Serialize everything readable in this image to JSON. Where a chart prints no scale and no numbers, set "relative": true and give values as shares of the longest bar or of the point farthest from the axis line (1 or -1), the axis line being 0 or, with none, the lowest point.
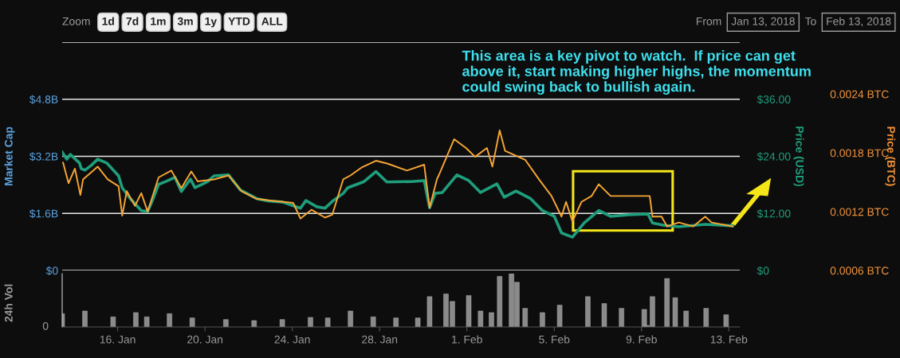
{
  "chart_data": [
    {
      "type": "other",
      "annotations": [
        "Zoom",
        "1d",
        "7d",
        "1m",
        "3m",
        "1y",
        "YTD",
        "ALL",
        "From",
        "Jan 13, 2018",
        "To",
        "Feb 13, 2018"
      ]
    },
    {
      "type": "line",
      "ylabel": "Market Cap",
      "y2label": "Price (USD)",
      "y3label": "Price (BTC)",
      "xlim": [
        "2018-01-13T11:00",
        "2018-02-13T12:00"
      ],
      "ylim": [
        0,
        6.4
      ],
      "yticks": [
        {
          "value": 0,
          "label": "$0"
        },
        {
          "value": 1.6,
          "label": "$1.6B"
        },
        {
          "value": 3.2,
          "label": "$3.2B"
        },
        {
          "value": 4.8,
          "label": "$4.8B"
        },
        {
          "value": 6.4,
          "label": null
        }
      ],
      "y2lim": [
        0,
        48
      ],
      "y2ticks": [
        {
          "value": 0,
          "label": "$0"
        },
        {
          "value": 12,
          "label": "$12.00"
        },
        {
          "value": 24,
          "label": "$24.00"
        },
        {
          "value": 36,
          "label": "$36.00"
        }
      ],
      "y3lim": [
        0.0006,
        0.00293
      ],
      "y3ticks": [
        {
          "value": 0.0006,
          "label": "0.0006 BTC"
        },
        {
          "value": 0.0012,
          "label": "0.0012 BTC"
        },
        {
          "value": 0.0018,
          "label": "0.0018 BTC"
        },
        {
          "value": 0.0024,
          "label": "0.0024 BTC"
        }
      ],
      "grid": "y",
      "tick_labels": "y",
      "marker": "none",
      "line_style": "solid",
      "legend": false,
      "annotations": [
        "This area is a key pivot to watch.  If price can get above it, start making higher highs, the momentum could swing back to bullish again."
      ],
      "series": [
        {
          "axis": "y2",
          "color": "#1f9e7c",
          "x": [
            "2018-01-13T11:00",
            "2018-01-13T16:00",
            "2018-01-13T20:00",
            "2018-01-14T06:00",
            "2018-01-14T08:00",
            "2018-01-14T12:00",
            "2018-01-14T19:00",
            "2018-01-15T02:00",
            "2018-01-15T12:00",
            "2018-01-16T01:00",
            "2018-01-16T05:00",
            "2018-01-16T14:00",
            "2018-01-17T02:00",
            "2018-01-17T09:00",
            "2018-01-17T15:00",
            "2018-01-17T21:00",
            "2018-01-18T05:00",
            "2018-01-18T15:00",
            "2018-01-18T22:00",
            "2018-01-19T08:00",
            "2018-01-19T13:00",
            "2018-01-20T03:00",
            "2018-01-20T10:00",
            "2018-01-21T02:00",
            "2018-01-21T15:00",
            "2018-01-22T09:00",
            "2018-01-22T22:00",
            "2018-01-23T13:00",
            "2018-01-24T09:00",
            "2018-01-24T15:00",
            "2018-01-25T03:00",
            "2018-01-25T12:00",
            "2018-01-25T21:00",
            "2018-01-26T08:00",
            "2018-01-26T13:00",
            "2018-01-27T07:00",
            "2018-01-27T20:00",
            "2018-01-28T08:00",
            "2018-01-29T11:00",
            "2018-01-30T01:00",
            "2018-01-30T07:00",
            "2018-01-30T13:00",
            "2018-01-30T21:00",
            "2018-01-31T13:00",
            "2018-02-01T02:00",
            "2018-02-01T15:00",
            "2018-02-02T09:00",
            "2018-02-02T17:00",
            "2018-02-03T06:00",
            "2018-02-03T22:00",
            "2018-02-04T11:00",
            "2018-02-05T00:00",
            "2018-02-05T08:00",
            "2018-02-05T20:00",
            "2018-02-06T09:00",
            "2018-02-07T01:00",
            "2018-02-07T14:00",
            "2018-02-08T10:00",
            "2018-02-09T07:00",
            "2018-02-09T12:00",
            "2018-02-10T01:00",
            "2018-02-10T17:00",
            "2018-02-11T22:00",
            "2018-02-13T04:00"
          ],
          "values": [
            24.9,
            23.4,
            24.4,
            22.6,
            21.4,
            21.1,
            22.1,
            23.4,
            22.6,
            19.9,
            17.4,
            15.1,
            12.6,
            12.4,
            15.1,
            18.1,
            18.7,
            19.6,
            16.6,
            19.2,
            17.4,
            18.7,
            19.9,
            20.1,
            16.9,
            15.1,
            14.6,
            14.4,
            13.1,
            14.7,
            13.4,
            13.1,
            14.7,
            16.2,
            17.4,
            18.7,
            20.8,
            18.6,
            18.7,
            18.9,
            13.2,
            16.2,
            16.4,
            20.1,
            18.9,
            16.4,
            18.2,
            15.4,
            16.7,
            15.1,
            12.6,
            11.4,
            7.9,
            7.0,
            10.0,
            12.6,
            11.4,
            11.7,
            11.9,
            10.0,
            9.5,
            9.2,
            9.7,
            9.4
          ]
        },
        {
          "axis": "y3",
          "color": "#f7a535",
          "x": [
            "2018-01-13T12:00",
            "2018-01-13T18:00",
            "2018-01-14T01:00",
            "2018-01-14T07:00",
            "2018-01-14T10:00",
            "2018-01-15T02:00",
            "2018-01-15T13:00",
            "2018-01-16T01:00",
            "2018-01-16T05:00",
            "2018-01-16T10:00",
            "2018-01-16T19:00",
            "2018-01-17T02:00",
            "2018-01-17T09:00",
            "2018-01-17T21:00",
            "2018-01-18T11:00",
            "2018-01-18T22:00",
            "2018-01-19T09:00",
            "2018-01-19T16:00",
            "2018-01-20T10:00",
            "2018-01-21T02:00",
            "2018-01-21T16:00",
            "2018-01-22T09:00",
            "2018-01-23T03:00",
            "2018-01-24T01:00",
            "2018-01-24T09:00",
            "2018-01-24T21:00",
            "2018-01-25T12:00",
            "2018-01-25T20:00",
            "2018-01-26T08:00",
            "2018-01-26T16:00",
            "2018-01-27T04:00",
            "2018-01-27T20:00",
            "2018-01-28T09:00",
            "2018-01-29T06:00",
            "2018-01-30T01:00",
            "2018-01-30T07:00",
            "2018-01-30T15:00",
            "2018-01-30T17:00",
            "2018-01-31T10:00",
            "2018-01-31T23:00",
            "2018-02-01T09:00",
            "2018-02-01T22:00",
            "2018-02-02T04:00",
            "2018-02-02T12:00",
            "2018-02-02T18:00",
            "2018-02-03T16:00",
            "2018-02-04T08:00",
            "2018-02-04T21:00",
            "2018-02-05T08:00",
            "2018-02-05T13:00",
            "2018-02-05T20:00",
            "2018-02-06T06:00",
            "2018-02-06T17:00",
            "2018-02-07T01:00",
            "2018-02-07T14:00",
            "2018-02-08T16:00",
            "2018-02-09T09:00",
            "2018-02-09T12:00",
            "2018-02-09T22:00",
            "2018-02-10T04:00",
            "2018-02-10T17:00",
            "2018-02-11T09:00",
            "2018-02-11T22:00",
            "2018-02-12T05:00",
            "2018-02-13T04:00"
          ],
          "values": [
            0.0017,
            0.00149,
            0.00164,
            0.00137,
            0.00153,
            0.00166,
            0.00153,
            0.00146,
            0.00116,
            0.00141,
            0.00126,
            0.00139,
            0.0012,
            0.00155,
            0.00162,
            0.00144,
            0.00161,
            0.00151,
            0.00153,
            0.00157,
            0.00141,
            0.00133,
            0.00131,
            0.00129,
            0.00113,
            0.00122,
            0.00114,
            0.00117,
            0.00153,
            0.00157,
            0.00165,
            0.00172,
            0.00169,
            0.00162,
            0.00168,
            0.00124,
            0.00153,
            0.00157,
            0.00194,
            0.00185,
            0.00176,
            0.00185,
            0.00166,
            0.00203,
            0.00182,
            0.00173,
            0.00152,
            0.00136,
            0.00115,
            0.0013,
            0.0011,
            0.0013,
            0.00136,
            0.00148,
            0.00136,
            0.00136,
            0.00136,
            0.00115,
            0.00115,
            0.00105,
            0.00109,
            0.00105,
            0.00115,
            0.00109,
            0.00105
          ]
        }
      ]
    },
    {
      "type": "bar",
      "relative": true,
      "ylabel": "24h Vol",
      "annotations": [
        "0"
      ],
      "tick_labels": "x",
      "grid": false,
      "xlim": [
        "2018-01-13T11:00",
        "2018-02-13T12:00"
      ],
      "xticks": [
        {
          "value": "2018-01-16",
          "label": "16. Jan"
        },
        {
          "value": "2018-01-20",
          "label": "20. Jan"
        },
        {
          "value": "2018-01-24",
          "label": "24. Jan"
        },
        {
          "value": "2018-01-28",
          "label": "28. Jan"
        },
        {
          "value": "2018-02-01",
          "label": "1. Feb"
        },
        {
          "value": "2018-02-05",
          "label": "5. Feb"
        },
        {
          "value": "2018-02-09",
          "label": "9. Feb"
        },
        {
          "value": "2018-02-13",
          "label": "13. Feb"
        }
      ],
      "series": [
        {
          "color": "#8a8a8a",
          "x": [
            "2018-01-13T11:00",
            "2018-01-14T12:00",
            "2018-01-15T19:00",
            "2018-01-16T20:00",
            "2018-01-17T08:00",
            "2018-01-18T09:00",
            "2018-01-19T10:00",
            "2018-01-20T23:00",
            "2018-01-22T06:00",
            "2018-01-23T13:00",
            "2018-01-24T20:00",
            "2018-01-25T15:00",
            "2018-01-26T16:00",
            "2018-01-27T17:00",
            "2018-01-28T18:00",
            "2018-01-29T18:00",
            "2018-01-30T07:00",
            "2018-01-31T01:00",
            "2018-01-31T08:00",
            "2018-02-01T02:00",
            "2018-02-01T15:00",
            "2018-02-02T03:00",
            "2018-02-02T12:00",
            "2018-02-03T01:00",
            "2018-02-03T07:00",
            "2018-02-03T16:00",
            "2018-02-04T11:00",
            "2018-02-05T06:00",
            "2018-02-06T13:00",
            "2018-02-07T07:00",
            "2018-02-08T02:00",
            "2018-02-09T03:00",
            "2018-02-09T06:00",
            "2018-02-09T12:00",
            "2018-02-10T04:00",
            "2018-02-10T13:00",
            "2018-02-11T01:00",
            "2018-02-11T23:00",
            "2018-02-12T21:00"
          ],
          "values": [
            0.25,
            0.3,
            0.19,
            0.27,
            0.19,
            0.25,
            0.17,
            0.14,
            0.12,
            0.14,
            0.18,
            0.17,
            0.3,
            0.19,
            0.17,
            0.17,
            0.57,
            0.62,
            0.48,
            0.59,
            0.3,
            0.27,
            0.95,
            1.0,
            0.84,
            0.35,
            0.27,
            0.41,
            0.57,
            0.44,
            0.35,
            0.33,
            0.03,
            0.57,
            0.91,
            0.55,
            0.3,
            0.35,
            0.23
          ]
        }
      ]
    }
  ]
}
